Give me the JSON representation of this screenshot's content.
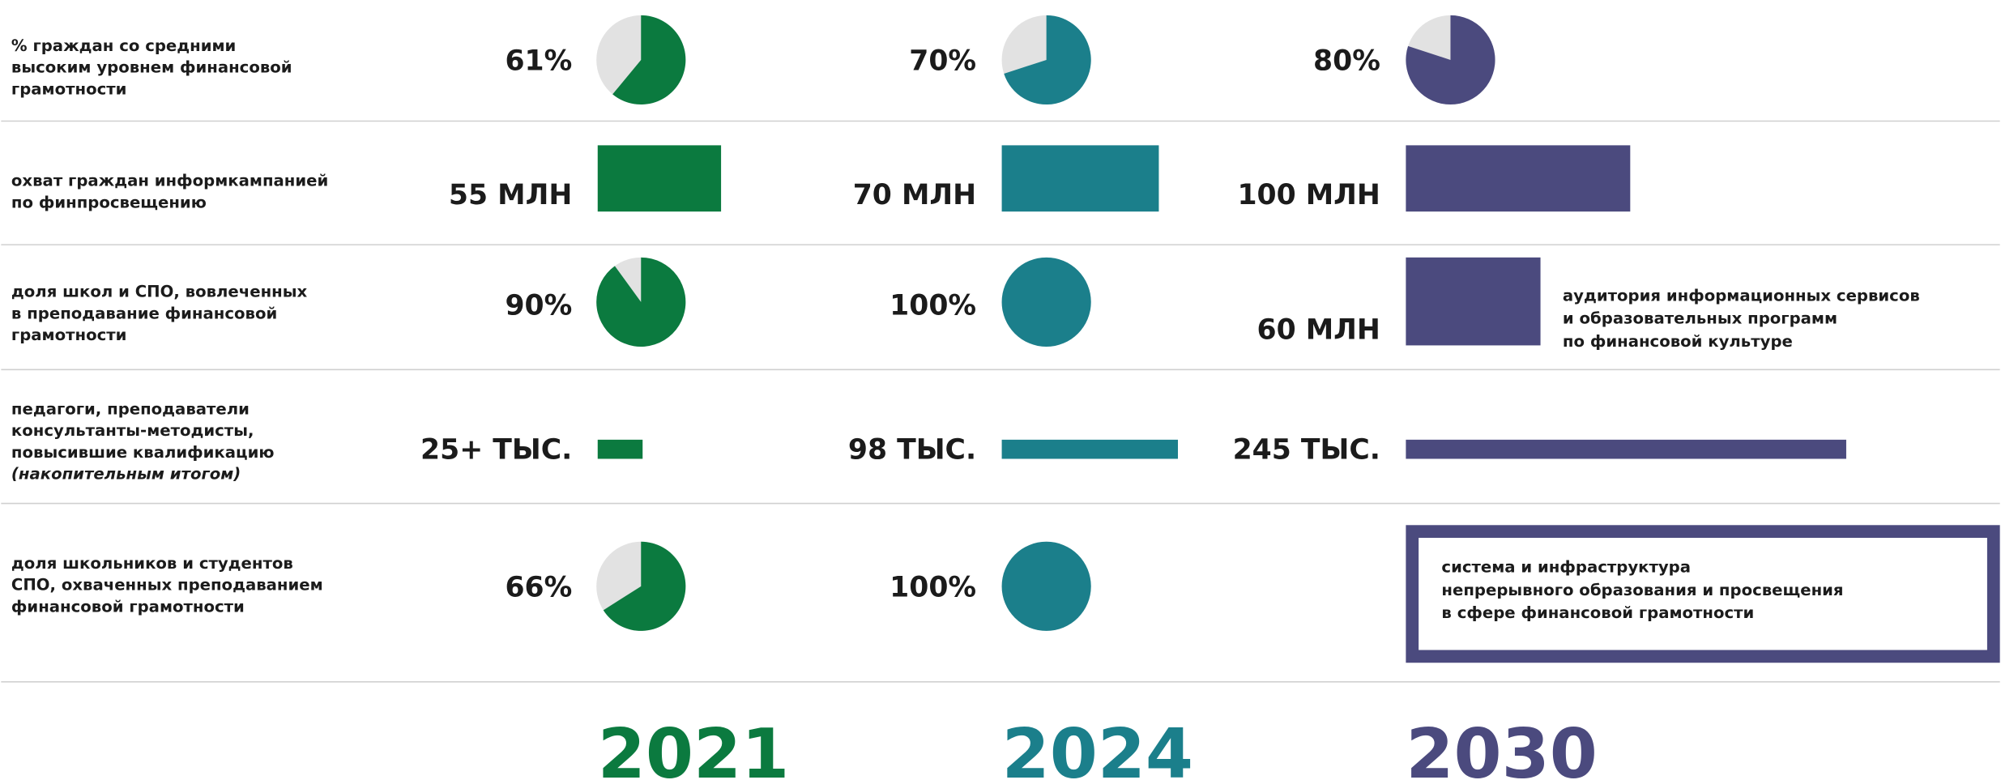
{
  "years": [
    "2021",
    "2024",
    "2030"
  ],
  "rows": [
    {
      "label": [
        "% граждан со средними",
        "высоким уровнем финансовой",
        "грамотности"
      ],
      "cells": [
        {
          "type": "pie",
          "value": 61,
          "label": "61%"
        },
        {
          "type": "pie",
          "value": 70,
          "label": "70%"
        },
        {
          "type": "pie",
          "value": 80,
          "label": "80%"
        }
      ]
    },
    {
      "label": [
        "охват граждан информкампанией",
        "по финпросвещению"
      ],
      "cells": [
        {
          "type": "bar",
          "value": 55,
          "label": "55 МЛН"
        },
        {
          "type": "bar",
          "value": 70,
          "label": "70 МЛН"
        },
        {
          "type": "bar",
          "value": 100,
          "label": "100 МЛН"
        }
      ]
    },
    {
      "label": [
        "доля школ и СПО, вовлеченных",
        "в преподавание финансовой",
        "грамотности"
      ],
      "cells": [
        {
          "type": "pie",
          "value": 90,
          "label": "90%"
        },
        {
          "type": "pie",
          "value": 100,
          "label": "100%"
        },
        {
          "type": "bar",
          "value": 60,
          "label": "60 МЛН",
          "note": [
            "аудитория информационных сервисов",
            "и образовательных программ",
            "по финансовой культуре"
          ]
        }
      ]
    },
    {
      "label": [
        "педагоги, преподаватели",
        "консультанты-методисты,",
        "повысившие квалификацию"
      ],
      "note": "(накопительным итогом)",
      "cells": [
        {
          "type": "bar",
          "value": 25,
          "label": "25+ ТЫС."
        },
        {
          "type": "bar",
          "value": 98,
          "label": "98 ТЫС."
        },
        {
          "type": "bar",
          "value": 245,
          "label": "245 ТЫС."
        }
      ]
    },
    {
      "label": [
        "доля школьников и студентов",
        "СПО, охваченных преподаванием",
        "финансовой грамотности"
      ],
      "cells": [
        {
          "type": "pie",
          "value": 66,
          "label": "66%"
        },
        {
          "type": "pie",
          "value": 100,
          "label": "100%"
        },
        {
          "type": "box",
          "text": [
            "система и инфраструктура",
            "непрерывного образования и просвещения",
            "в сфере финансовой грамотности"
          ]
        }
      ]
    }
  ]
}
